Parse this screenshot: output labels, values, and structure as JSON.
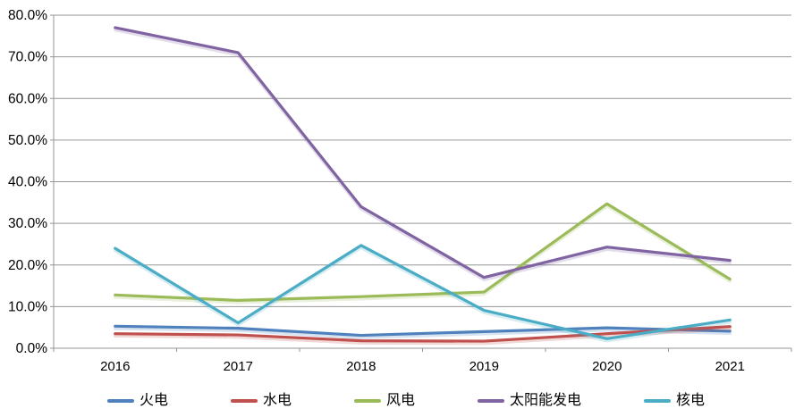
{
  "chart_data": {
    "type": "line",
    "title": "",
    "xlabel": "",
    "ylabel": "",
    "categories": [
      "2016",
      "2017",
      "2018",
      "2019",
      "2020",
      "2021"
    ],
    "series": [
      {
        "key": "thermal-power",
        "name": "火电",
        "color": "#4F81BD",
        "values": [
          5.3,
          4.8,
          3.1,
          4.0,
          4.9,
          4.1
        ]
      },
      {
        "key": "hydro-power",
        "name": "水电",
        "color": "#C0504D",
        "values": [
          3.5,
          3.2,
          1.8,
          1.7,
          3.5,
          5.2
        ]
      },
      {
        "key": "wind-power",
        "name": "风电",
        "color": "#9BBB59",
        "values": [
          12.8,
          11.5,
          12.4,
          13.5,
          34.7,
          16.6
        ]
      },
      {
        "key": "solar-power",
        "name": "太阳能发电",
        "color": "#8064A2",
        "values": [
          77.0,
          71.0,
          34.0,
          17.0,
          24.3,
          21.1
        ]
      },
      {
        "key": "nuclear-power",
        "name": "核电",
        "color": "#4BACC6",
        "values": [
          24.0,
          6.1,
          24.7,
          9.1,
          2.3,
          6.8
        ]
      }
    ],
    "ylim": [
      0,
      80
    ],
    "y_tick_step": 10,
    "y_tick_labels_top_to_bottom": [
      "80.0%",
      "70.0%",
      "60.0%",
      "50.0%",
      "40.0%",
      "30.0%",
      "20.0%",
      "10.0%",
      "0.0%"
    ],
    "grid": true,
    "legend_position": "bottom"
  },
  "styles": {
    "grid_color": "#969696",
    "axis_color": "#969696",
    "text_color": "#000000",
    "background": "#FFFFFF"
  }
}
